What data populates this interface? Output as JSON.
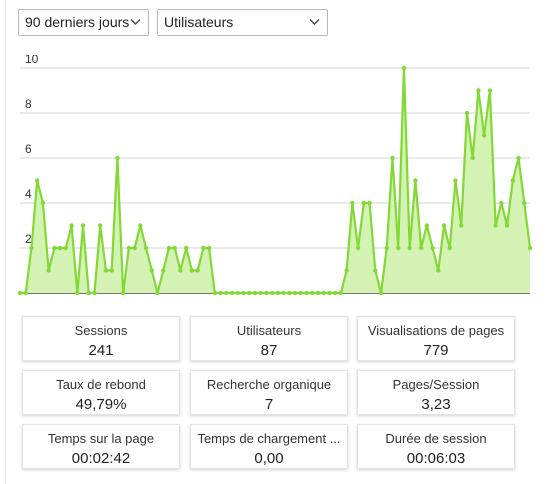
{
  "filters": {
    "period": "90 derniers jours",
    "metric": "Utilisateurs"
  },
  "chart_data": {
    "type": "area",
    "title": "",
    "xlabel": "",
    "ylabel": "",
    "ylim": [
      0,
      10
    ],
    "yticks": [
      2,
      4,
      6,
      8,
      10
    ],
    "grid": true,
    "color": "#82d936",
    "fill": "#d4f2b4",
    "series": [
      {
        "values": [
          0,
          0,
          2,
          5,
          4,
          1,
          2,
          2,
          2,
          3,
          0,
          3,
          0,
          0,
          3,
          1,
          1,
          6,
          0,
          2,
          2,
          3,
          2,
          1,
          0,
          1,
          2,
          2,
          1,
          2,
          1,
          1,
          2,
          2,
          0,
          0,
          0,
          0,
          0,
          0,
          0,
          0,
          0,
          0,
          0,
          0,
          0,
          0,
          0,
          0,
          0,
          0,
          0,
          0,
          0,
          0,
          0,
          1,
          4,
          2,
          4,
          4,
          1,
          0,
          2,
          6,
          2,
          10,
          2,
          5,
          2,
          3,
          2,
          1,
          3,
          2,
          5,
          3,
          8,
          6,
          9,
          7,
          9,
          3,
          4,
          3,
          5,
          6,
          4,
          2
        ]
      }
    ]
  },
  "stats": [
    {
      "label": "Sessions",
      "value": "241"
    },
    {
      "label": "Utilisateurs",
      "value": "87"
    },
    {
      "label": "Visualisations de pages",
      "value": "779"
    },
    {
      "label": "Taux de rebond",
      "value": "49,79%"
    },
    {
      "label": "Recherche organique",
      "value": "7"
    },
    {
      "label": "Pages/Session",
      "value": "3,23"
    },
    {
      "label": "Temps sur la page",
      "value": "00:02:42"
    },
    {
      "label": "Temps de chargement ...",
      "value": "0,00"
    },
    {
      "label": "Durée de session",
      "value": "00:06:03"
    }
  ],
  "icons": {
    "dropdown": "chevron-down-icon"
  }
}
